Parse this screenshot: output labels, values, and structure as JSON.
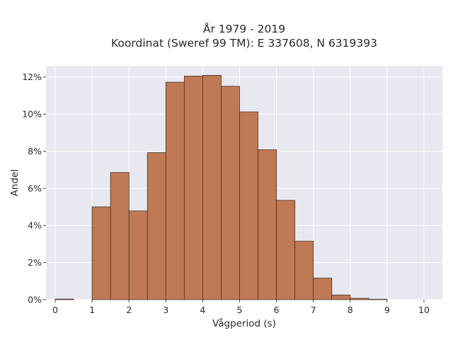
{
  "chart_data": {
    "type": "bar",
    "title_line1": "År 1979 - 2019",
    "title_line2": "Koordinat (Sweref 99 TM): E 337608, N 6319393",
    "xlabel": "Vågperiod (s)",
    "ylabel": "Andel",
    "xlim": [
      -0.25,
      10.5
    ],
    "ylim": [
      0,
      12.6
    ],
    "xticks": [
      "0",
      "1",
      "2",
      "3",
      "4",
      "5",
      "6",
      "7",
      "8",
      "9",
      "10"
    ],
    "yticks": [
      "0%",
      "2%",
      "4%",
      "6%",
      "8%",
      "10%",
      "12%"
    ],
    "bin_width": 0.5,
    "bins": [
      {
        "x0": 0.0,
        "value": 0.03
      },
      {
        "x0": 0.5,
        "value": 0.0
      },
      {
        "x0": 1.0,
        "value": 5.0
      },
      {
        "x0": 1.5,
        "value": 6.85
      },
      {
        "x0": 2.0,
        "value": 4.78
      },
      {
        "x0": 2.5,
        "value": 7.92
      },
      {
        "x0": 3.0,
        "value": 11.72
      },
      {
        "x0": 3.5,
        "value": 12.05
      },
      {
        "x0": 4.0,
        "value": 12.09
      },
      {
        "x0": 4.5,
        "value": 11.5
      },
      {
        "x0": 5.0,
        "value": 10.12
      },
      {
        "x0": 5.5,
        "value": 8.08
      },
      {
        "x0": 6.0,
        "value": 5.35
      },
      {
        "x0": 6.5,
        "value": 3.15
      },
      {
        "x0": 7.0,
        "value": 1.16
      },
      {
        "x0": 7.5,
        "value": 0.25
      },
      {
        "x0": 8.0,
        "value": 0.07
      },
      {
        "x0": 8.5,
        "value": 0.02
      }
    ],
    "bar_color": "#bf7a55",
    "bar_edge_color": "#4a2e1e",
    "plot_bg": "#e8e8f1",
    "grid": true,
    "legend": false
  }
}
